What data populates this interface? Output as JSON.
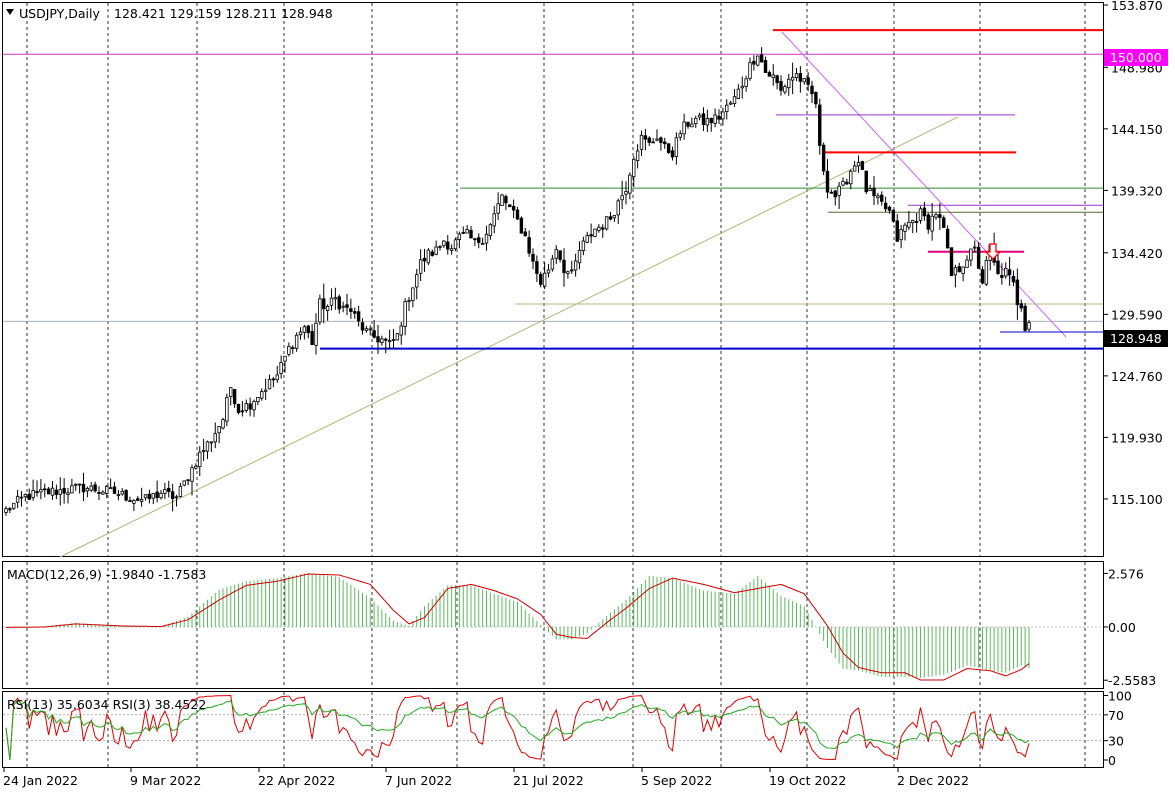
{
  "chart_header": {
    "symbol": "USDJPY,Daily",
    "ohlc": "128.421 129.159 128.211 128.948"
  },
  "macd_label": "MACD(12,26,9) -1.9840 -1.7583",
  "rsi_label": "RSI(13) 35.6034  RSI(3) 38.4522",
  "colors": {
    "background": "#ffffff",
    "candle": "#000000",
    "grid": "#000000",
    "support": "#0000cc",
    "resistance": "#ff0000",
    "trend_up": "#b8b37a",
    "trend_down": "#cc66ff",
    "level_150": "#cc33cc",
    "horizontal_green": "#2e8b2e",
    "macd_hist": "#5cb85c",
    "macd_signal": "#cc0000",
    "rsi_fast": "#dd0000",
    "rsi_slow": "#22aa22",
    "price_tag_bg": "#000000",
    "level_tag_bg": "#ff00ff"
  },
  "chart_data": [
    {
      "type": "candlestick",
      "title": "USDJPY,Daily",
      "ylim": [
        110.7,
        153.87
      ],
      "y_ticks": [
        "153.870",
        "148.980",
        "144.150",
        "139.320",
        "134.420",
        "129.590",
        "124.760",
        "119.930",
        "115.100"
      ],
      "x_tick_labels": [
        "24 Jan 2022",
        "9 Mar 2022",
        "22 Apr 2022",
        "7 Jun 2022",
        "21 Jul 2022",
        "5 Sep 2022",
        "19 Oct 2022",
        "2 Dec 2022"
      ],
      "current_price": "128.948",
      "level_label": "150.000",
      "close_path": [
        [
          0,
          114.2
        ],
        [
          5,
          115.3
        ],
        [
          10,
          115.6
        ],
        [
          15,
          115.8
        ],
        [
          20,
          116.0
        ],
        [
          24,
          115.8
        ],
        [
          28,
          115.6
        ],
        [
          32,
          115.2
        ],
        [
          36,
          115.0
        ],
        [
          40,
          115.6
        ],
        [
          44,
          115.2
        ],
        [
          47,
          116.9
        ],
        [
          50,
          118.6
        ],
        [
          53,
          119.8
        ],
        [
          56,
          121.4
        ],
        [
          58,
          123.9
        ],
        [
          60,
          122.1
        ],
        [
          63,
          122.6
        ],
        [
          66,
          123.6
        ],
        [
          70,
          124.8
        ],
        [
          73,
          126.9
        ],
        [
          75,
          127.9
        ],
        [
          77,
          128.6
        ],
        [
          79,
          127.4
        ],
        [
          81,
          130.4
        ],
        [
          83,
          130.2
        ],
        [
          85,
          130.8
        ],
        [
          87,
          130.1
        ],
        [
          89,
          129.9
        ],
        [
          91,
          128.9
        ],
        [
          93,
          128.2
        ],
        [
          95,
          127.8
        ],
        [
          97,
          127.6
        ],
        [
          99,
          127.2
        ],
        [
          101,
          127.9
        ],
        [
          103,
          130.2
        ],
        [
          105,
          131.9
        ],
        [
          107,
          133.6
        ],
        [
          109,
          134.3
        ],
        [
          111,
          134.6
        ],
        [
          113,
          135.4
        ],
        [
          115,
          134.9
        ],
        [
          117,
          135.6
        ],
        [
          119,
          135.8
        ],
        [
          121,
          135.2
        ],
        [
          123,
          135.6
        ],
        [
          125,
          136.6
        ],
        [
          127,
          138.1
        ],
        [
          128,
          138.8
        ],
        [
          130,
          137.9
        ],
        [
          132,
          136.9
        ],
        [
          134,
          135.7
        ],
        [
          136,
          133.6
        ],
        [
          138,
          132.1
        ],
        [
          140,
          133.2
        ],
        [
          142,
          134.9
        ],
        [
          144,
          133.2
        ],
        [
          146,
          132.6
        ],
        [
          148,
          134.6
        ],
        [
          150,
          135.5
        ],
        [
          152,
          136.3
        ],
        [
          154,
          136.6
        ],
        [
          156,
          137.2
        ],
        [
          158,
          138.4
        ],
        [
          160,
          139.6
        ],
        [
          162,
          142.1
        ],
        [
          164,
          143.4
        ],
        [
          166,
          142.9
        ],
        [
          168,
          143.6
        ],
        [
          170,
          142.6
        ],
        [
          172,
          142.3
        ],
        [
          174,
          143.9
        ],
        [
          176,
          144.6
        ],
        [
          178,
          144.9
        ],
        [
          180,
          144.7
        ],
        [
          182,
          144.8
        ],
        [
          184,
          145.1
        ],
        [
          186,
          145.8
        ],
        [
          188,
          146.5
        ],
        [
          190,
          147.7
        ],
        [
          192,
          149.1
        ],
        [
          194,
          150.2
        ],
        [
          196,
          148.6
        ],
        [
          198,
          148.2
        ],
        [
          200,
          147.1
        ],
        [
          202,
          148.1
        ],
        [
          204,
          148.4
        ],
        [
          206,
          147.7
        ],
        [
          208,
          146.8
        ],
        [
          209,
          146.2
        ],
        [
          210,
          142.5
        ],
        [
          212,
          139.6
        ],
        [
          214,
          138.9
        ],
        [
          216,
          139.6
        ],
        [
          218,
          140.9
        ],
        [
          220,
          141.8
        ],
        [
          222,
          139.4
        ],
        [
          224,
          138.7
        ],
        [
          226,
          138.2
        ],
        [
          228,
          137.6
        ],
        [
          230,
          135.5
        ],
        [
          232,
          136.5
        ],
        [
          234,
          136.9
        ],
        [
          236,
          137.5
        ],
        [
          238,
          136.7
        ],
        [
          240,
          137.6
        ],
        [
          242,
          136.2
        ],
        [
          244,
          132.6
        ],
        [
          246,
          133.2
        ],
        [
          248,
          134.1
        ],
        [
          250,
          134.6
        ],
        [
          252,
          132.2
        ],
        [
          254,
          134.8
        ],
        [
          255,
          133.5
        ],
        [
          256,
          132.6
        ],
        [
          258,
          132.9
        ],
        [
          260,
          131.9
        ],
        [
          261,
          130.6
        ],
        [
          262,
          130.4
        ],
        [
          263,
          128.7
        ],
        [
          264,
          128.948
        ]
      ],
      "support_line": 126.9,
      "resistance_lines": [
        151.9,
        142.3,
        134.5
      ],
      "level_lines": [
        150.0,
        145.25,
        139.5,
        138.15,
        137.6,
        130.4,
        128.2
      ],
      "trendlines": [
        "rising trendline from Jan 2022 low",
        "falling trendline from Oct 2022 high"
      ]
    },
    {
      "type": "bar+line",
      "title": "MACD(12,26,9) -1.9840 -1.7583",
      "ylim": [
        -3.0,
        3.0
      ],
      "y_ticks": [
        "2.576",
        "0.00",
        "-2.5583"
      ],
      "signal_path": [
        [
          0,
          -0.02
        ],
        [
          10,
          0.0
        ],
        [
          18,
          0.15
        ],
        [
          30,
          0.05
        ],
        [
          40,
          0.02
        ],
        [
          47,
          0.35
        ],
        [
          55,
          1.3
        ],
        [
          62,
          2.0
        ],
        [
          70,
          2.2
        ],
        [
          78,
          2.55
        ],
        [
          86,
          2.5
        ],
        [
          94,
          2.05
        ],
        [
          100,
          0.8
        ],
        [
          104,
          0.15
        ],
        [
          108,
          0.45
        ],
        [
          114,
          1.85
        ],
        [
          120,
          2.05
        ],
        [
          126,
          1.75
        ],
        [
          132,
          1.35
        ],
        [
          138,
          0.6
        ],
        [
          142,
          -0.35
        ],
        [
          146,
          -0.5
        ],
        [
          150,
          -0.55
        ],
        [
          156,
          0.35
        ],
        [
          160,
          0.9
        ],
        [
          166,
          1.85
        ],
        [
          172,
          2.35
        ],
        [
          180,
          2.05
        ],
        [
          188,
          1.65
        ],
        [
          194,
          1.85
        ],
        [
          200,
          2.05
        ],
        [
          206,
          1.6
        ],
        [
          212,
          0.05
        ],
        [
          216,
          -1.25
        ],
        [
          220,
          -1.95
        ],
        [
          226,
          -2.2
        ],
        [
          232,
          -2.2
        ],
        [
          236,
          -2.55
        ],
        [
          242,
          -2.55
        ],
        [
          248,
          -2.0
        ],
        [
          254,
          -2.1
        ],
        [
          258,
          -2.35
        ],
        [
          262,
          -2.05
        ],
        [
          264,
          -1.76
        ]
      ],
      "hist_path": [
        [
          0,
          -0.02
        ],
        [
          10,
          0.02
        ],
        [
          18,
          0.2
        ],
        [
          30,
          0.05
        ],
        [
          40,
          0.02
        ],
        [
          47,
          0.5
        ],
        [
          55,
          1.8
        ],
        [
          62,
          2.2
        ],
        [
          70,
          2.35
        ],
        [
          78,
          2.6
        ],
        [
          86,
          2.4
        ],
        [
          94,
          1.4
        ],
        [
          100,
          0.3
        ],
        [
          104,
          0.05
        ],
        [
          108,
          1.0
        ],
        [
          114,
          2.0
        ],
        [
          120,
          2.0
        ],
        [
          126,
          1.6
        ],
        [
          132,
          1.2
        ],
        [
          138,
          0.1
        ],
        [
          142,
          -0.6
        ],
        [
          146,
          -0.6
        ],
        [
          150,
          -0.3
        ],
        [
          156,
          0.7
        ],
        [
          160,
          1.3
        ],
        [
          166,
          2.45
        ],
        [
          172,
          2.35
        ],
        [
          180,
          1.75
        ],
        [
          188,
          1.6
        ],
        [
          194,
          2.45
        ],
        [
          200,
          1.5
        ],
        [
          206,
          1.0
        ],
        [
          212,
          -1.0
        ],
        [
          216,
          -2.0
        ],
        [
          220,
          -2.1
        ],
        [
          226,
          -2.4
        ],
        [
          232,
          -2.4
        ],
        [
          236,
          -2.45
        ],
        [
          242,
          -2.3
        ],
        [
          248,
          -1.85
        ],
        [
          254,
          -2.1
        ],
        [
          258,
          -2.2
        ],
        [
          262,
          -1.85
        ],
        [
          264,
          -1.98
        ]
      ]
    },
    {
      "type": "line",
      "title": "RSI(13) 35.6034  RSI(3) 38.4522",
      "ylim": [
        0,
        100
      ],
      "y_ticks": [
        "100",
        "70",
        "30",
        "0"
      ],
      "series": [
        {
          "name": "RSI(13)",
          "values": []
        },
        {
          "name": "RSI(3)",
          "values": []
        }
      ]
    }
  ]
}
